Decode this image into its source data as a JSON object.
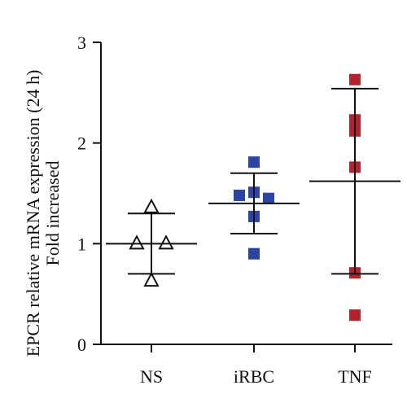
{
  "chart_data": {
    "type": "scatter",
    "ylabel_line1": "EPCR relative mRNA expression (24 h)",
    "ylabel_line2": "Fold increased",
    "categories": [
      "NS",
      "iRBC",
      "TNF"
    ],
    "yticks": [
      0,
      1,
      2,
      3
    ],
    "ylim": [
      0,
      3
    ],
    "grid": false,
    "legend": "none",
    "series": [
      {
        "category": "NS",
        "marker": "triangle-open",
        "color": "#111111",
        "points": [
          {
            "offset": 0,
            "y": 1.36
          },
          {
            "offset": -1,
            "y": 1.0
          },
          {
            "offset": 1,
            "y": 1.0
          },
          {
            "offset": 0,
            "y": 0.63
          }
        ],
        "mean": 1.0,
        "sd_upper": 1.3,
        "sd_lower": 0.7
      },
      {
        "category": "iRBC",
        "marker": "square",
        "color": "#2b45a6",
        "points": [
          {
            "offset": 0,
            "y": 1.81
          },
          {
            "offset": -1,
            "y": 1.48
          },
          {
            "offset": 0,
            "y": 1.51
          },
          {
            "offset": 1,
            "y": 1.45
          },
          {
            "offset": 0,
            "y": 1.27
          },
          {
            "offset": 0,
            "y": 0.9
          }
        ],
        "mean": 1.4,
        "sd_upper": 1.7,
        "sd_lower": 1.1
      },
      {
        "category": "TNF",
        "marker": "square",
        "color": "#b3232b",
        "points": [
          {
            "offset": 0,
            "y": 2.63
          },
          {
            "offset": 0,
            "y": 2.23
          },
          {
            "offset": 0,
            "y": 2.12
          },
          {
            "offset": 0,
            "y": 1.76
          },
          {
            "offset": 0,
            "y": 0.71
          },
          {
            "offset": 0,
            "y": 0.29
          }
        ],
        "mean": 1.62,
        "sd_upper": 2.54,
        "sd_lower": 0.7
      }
    ]
  }
}
